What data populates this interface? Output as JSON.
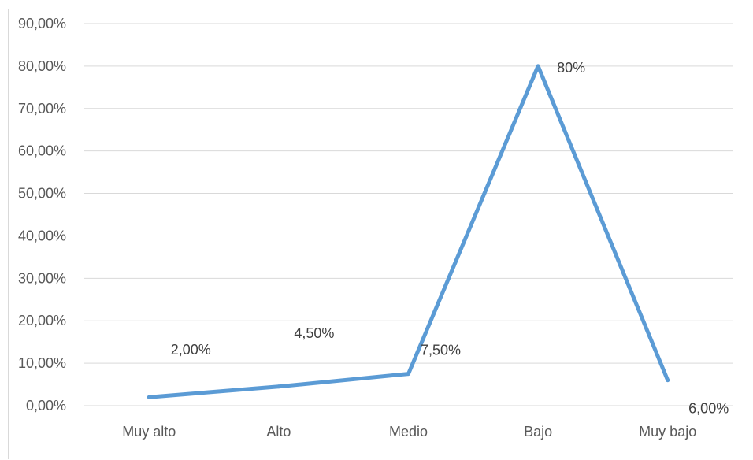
{
  "chart_data": {
    "type": "line",
    "categories": [
      "Muy alto",
      "Alto",
      "Medio",
      "Bajo",
      "Muy bajo"
    ],
    "series": [
      {
        "values": [
          2.0,
          4.5,
          7.5,
          80.0,
          6.0
        ]
      }
    ],
    "data_labels": [
      "2,00%",
      "4,50%",
      "7,50%",
      "80%",
      "6,00%"
    ],
    "y_ticks": [
      "0,00%",
      "10,00%",
      "20,00%",
      "30,00%",
      "40,00%",
      "50,00%",
      "60,00%",
      "70,00%",
      "80,00%",
      "90,00%"
    ],
    "ylim": [
      0,
      90
    ],
    "grid": true,
    "legend": "none",
    "colors": {
      "line": "#5b9bd5",
      "grid": "#d9d9d9",
      "text": "#595959"
    }
  }
}
